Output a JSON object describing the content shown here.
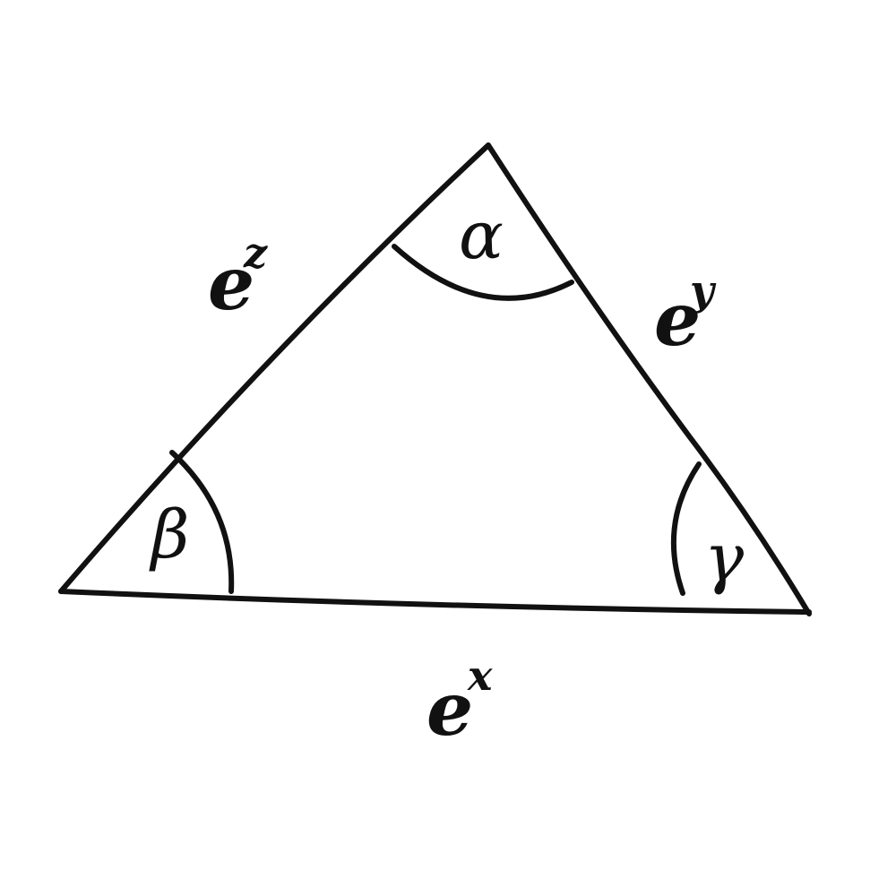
{
  "diagram": {
    "kind": "triangle",
    "angles": {
      "top": "α",
      "left": "β",
      "right": "γ"
    },
    "sides": {
      "left": {
        "base": "e",
        "exponent": "z"
      },
      "right": {
        "base": "e",
        "exponent": "y"
      },
      "bottom": {
        "base": "e",
        "exponent": "x"
      }
    },
    "colors": {
      "ink": "#111111",
      "background": "#ffffff"
    }
  }
}
